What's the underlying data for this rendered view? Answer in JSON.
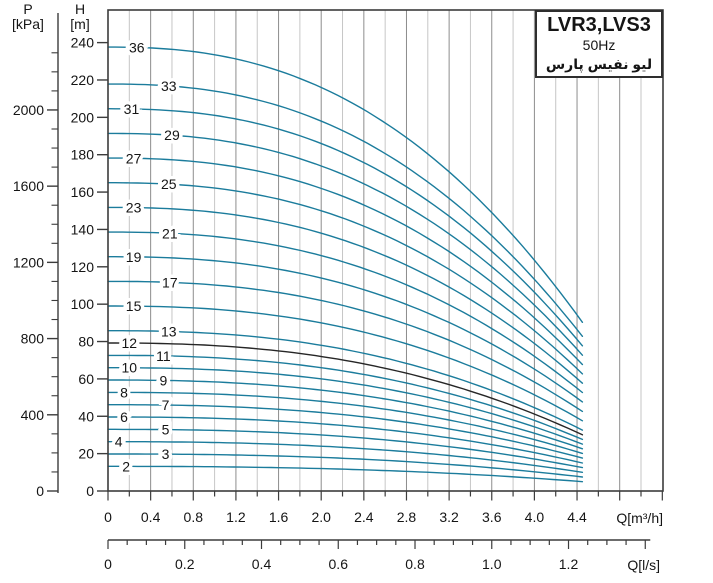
{
  "title_box": {
    "model": "LVR3,LVS3",
    "frequency": "50Hz",
    "brand": "ليو نفيس پارس"
  },
  "axes": {
    "p_axis": {
      "title": "P",
      "unit": "[kPa]",
      "labels": [
        "0",
        "400",
        "800",
        "1200",
        "1600",
        "2000"
      ],
      "label_step_kpa": 400,
      "minor_step_kpa": 100,
      "minor_max_kpa": 2400
    },
    "h_axis": {
      "title": "H",
      "unit": "[m]",
      "labels": [
        "0",
        "20",
        "40",
        "60",
        "80",
        "100",
        "120",
        "140",
        "160",
        "180",
        "200",
        "220",
        "240"
      ],
      "label_step_m": 20,
      "minor_step_m": 10,
      "minor_max_m": 250
    },
    "q_m3h_axis": {
      "unit_label": "Q[m³/h]",
      "labels": [
        "0",
        "0.4",
        "0.8",
        "1.2",
        "1.6",
        "2.0",
        "2.4",
        "2.8",
        "3.2",
        "3.6",
        "4.0",
        "4.4"
      ],
      "label_step": 0.4,
      "minor_step": 0.2,
      "minor_max": 5.2
    },
    "q_ls_axis": {
      "unit_label": "Q[l/s]",
      "labels": [
        "0",
        "0.2",
        "0.4",
        "0.6",
        "0.8",
        "1.0",
        "1.2"
      ],
      "label_step": 0.2,
      "minor_step": 0.05,
      "minor_max": 1.4
    }
  },
  "chart_data": {
    "type": "line",
    "title": "LVR3,LVS3 50Hz pump performance curves",
    "xlabel": "Q[m³/h]",
    "ylabel": "H[m]",
    "x_range_m3h": [
      0,
      4.45
    ],
    "y_range_m": [
      0,
      250
    ],
    "grid": "on",
    "legend": "curve labels = number of stages",
    "curve_color": "#1b7c9c",
    "curve_exponent": 2.4,
    "series": [
      {
        "stages": 36,
        "h0_m": 237.6,
        "h_end_m": 90.3,
        "label_q": 0.27
      },
      {
        "stages": 33,
        "h0_m": 217.8,
        "h_end_m": 82.8,
        "label_q": 0.57
      },
      {
        "stages": 31,
        "h0_m": 204.6,
        "h_end_m": 77.7,
        "label_q": 0.22
      },
      {
        "stages": 29,
        "h0_m": 191.4,
        "h_end_m": 72.7,
        "label_q": 0.6
      },
      {
        "stages": 27,
        "h0_m": 178.2,
        "h_end_m": 67.7,
        "label_q": 0.24
      },
      {
        "stages": 25,
        "h0_m": 165.0,
        "h_end_m": 62.7,
        "label_q": 0.57
      },
      {
        "stages": 23,
        "h0_m": 151.8,
        "h_end_m": 57.7,
        "label_q": 0.24
      },
      {
        "stages": 21,
        "h0_m": 138.6,
        "h_end_m": 52.7,
        "label_q": 0.58
      },
      {
        "stages": 19,
        "h0_m": 125.4,
        "h_end_m": 47.7,
        "label_q": 0.24
      },
      {
        "stages": 17,
        "h0_m": 112.2,
        "h_end_m": 42.6,
        "label_q": 0.58
      },
      {
        "stages": 15,
        "h0_m": 99.0,
        "h_end_m": 37.6,
        "label_q": 0.24
      },
      {
        "stages": 13,
        "h0_m": 85.8,
        "h_end_m": 32.6,
        "label_q": 0.57
      },
      {
        "stages": 12,
        "h0_m": 79.2,
        "h_end_m": 30.1,
        "label_q": 0.2,
        "color": "#262626"
      },
      {
        "stages": 11,
        "h0_m": 72.6,
        "h_end_m": 27.6,
        "label_q": 0.52
      },
      {
        "stages": 10,
        "h0_m": 66.0,
        "h_end_m": 25.1,
        "label_q": 0.2
      },
      {
        "stages": 9,
        "h0_m": 59.4,
        "h_end_m": 22.6,
        "label_q": 0.52
      },
      {
        "stages": 8,
        "h0_m": 52.8,
        "h_end_m": 20.1,
        "label_q": 0.15
      },
      {
        "stages": 7,
        "h0_m": 46.2,
        "h_end_m": 17.6,
        "label_q": 0.54
      },
      {
        "stages": 6,
        "h0_m": 39.6,
        "h_end_m": 15.0,
        "label_q": 0.15
      },
      {
        "stages": 5,
        "h0_m": 33.0,
        "h_end_m": 12.5,
        "label_q": 0.54
      },
      {
        "stages": 4,
        "h0_m": 26.4,
        "h_end_m": 10.0,
        "label_q": 0.1
      },
      {
        "stages": 3,
        "h0_m": 19.8,
        "h_end_m": 7.5,
        "label_q": 0.54
      },
      {
        "stages": 2,
        "h0_m": 13.2,
        "h_end_m": 5.0,
        "label_q": 0.17
      }
    ]
  },
  "colors": {
    "curve": "#1b7c9c",
    "grid_major": "#8d8d8d",
    "grid_minor": "#c6c6c6",
    "frame": "#3c3c3c",
    "text": "#151515"
  }
}
